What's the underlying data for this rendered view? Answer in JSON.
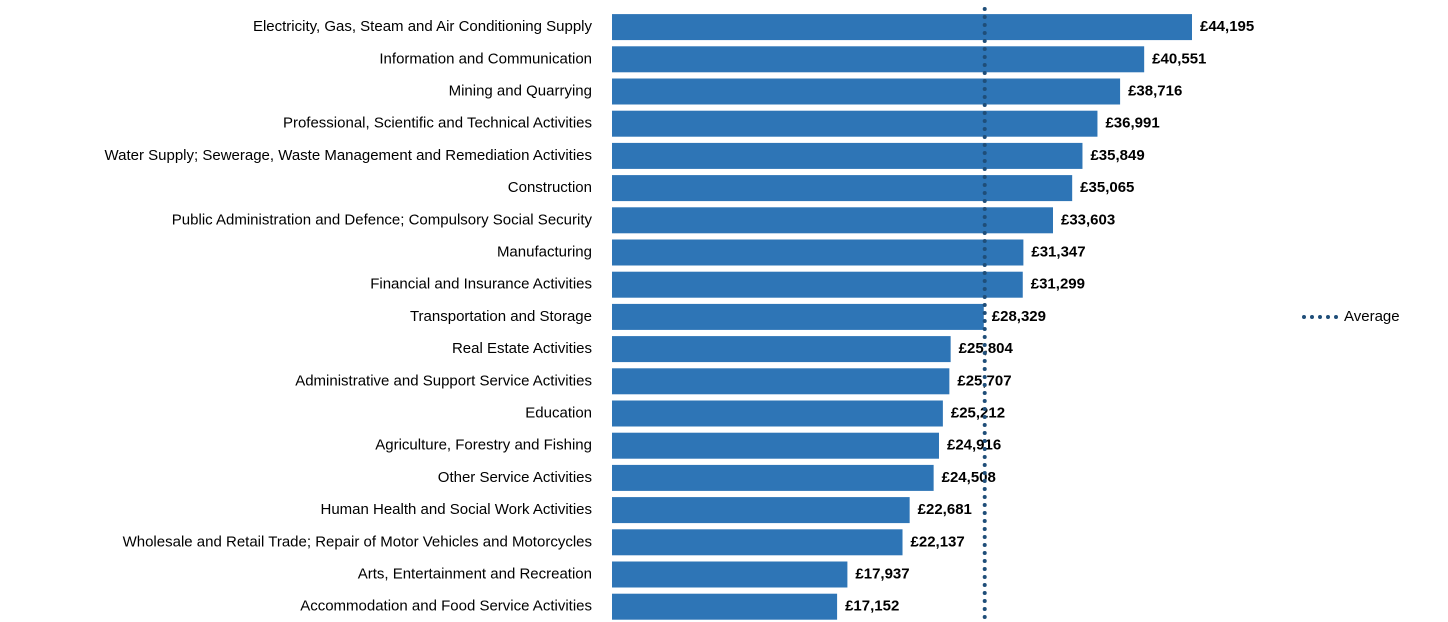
{
  "chart_data": {
    "type": "barh",
    "categories": [
      "Electricity, Gas, Steam and Air Conditioning Supply",
      "Information and Communication",
      "Mining and Quarrying",
      "Professional, Scientific and Technical Activities",
      "Water Supply; Sewerage, Waste Management and Remediation Activities",
      "Construction",
      "Public Administration and Defence; Compulsory Social Security",
      "Manufacturing",
      "Financial and Insurance Activities",
      "Transportation and Storage",
      "Real Estate Activities",
      "Administrative and Support Service Activities",
      "Education",
      "Agriculture, Forestry and Fishing",
      "Other Service Activities",
      "Human Health and Social Work Activities",
      "Wholesale and Retail Trade; Repair of Motor Vehicles and Motorcycles",
      "Arts, Entertainment and Recreation",
      "Accommodation and Food Service Activities"
    ],
    "values": [
      44195,
      40551,
      38716,
      36991,
      35849,
      35065,
      33603,
      31347,
      31299,
      28329,
      25804,
      25707,
      25212,
      24916,
      24508,
      22681,
      22137,
      17937,
      17152
    ],
    "value_labels": [
      "£44,195",
      "£40,551",
      "£38,716",
      "£36,991",
      "£35,849",
      "£35,065",
      "£33,603",
      "£31,347",
      "£31,299",
      "£28,329",
      "£25,804",
      "£25,707",
      "£25,212",
      "£24,916",
      "£24,508",
      "£22,681",
      "£22,137",
      "£17,937",
      "£17,152"
    ],
    "color": "#2e75b6",
    "reference_line": {
      "name": "Average",
      "value": 28400,
      "color": "#1f4e79"
    },
    "legend": "right"
  }
}
